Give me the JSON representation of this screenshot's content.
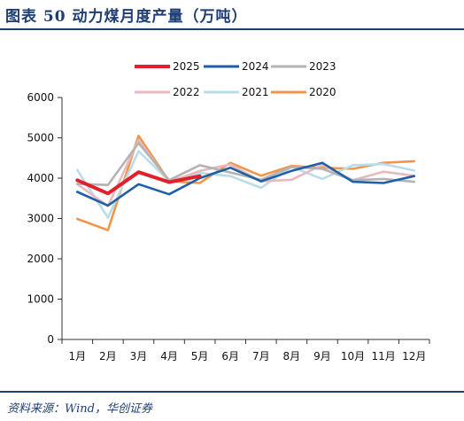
{
  "figure": {
    "title": "图表 50 动力煤月度产量（万吨）",
    "source": "资料来源：Wind，华创证券"
  },
  "chart_data": {
    "type": "line",
    "title": "",
    "xlabel": "",
    "ylabel": "",
    "categories": [
      "1月",
      "2月",
      "3月",
      "4月",
      "5月",
      "6月",
      "7月",
      "8月",
      "9月",
      "10月",
      "11月",
      "12月"
    ],
    "ylim": [
      0,
      6000
    ],
    "yticks": [
      0,
      1000,
      2000,
      3000,
      4000,
      5000,
      6000
    ],
    "grid": false,
    "legend_position": "top",
    "series": [
      {
        "name": "2025",
        "color": "#e0202a",
        "values": [
          3950,
          3620,
          4150,
          3900,
          4050,
          null,
          null,
          null,
          null,
          null,
          null,
          null
        ]
      },
      {
        "name": "2024",
        "color": "#1f5fa8",
        "values": [
          3660,
          3320,
          3850,
          3600,
          4000,
          4260,
          3920,
          4180,
          4380,
          3910,
          3880,
          4050
        ]
      },
      {
        "name": "2023",
        "color": "#b3b3b3",
        "values": [
          3860,
          3830,
          4870,
          3950,
          4320,
          4140,
          3960,
          4280,
          4230,
          3950,
          3980,
          3910
        ]
      },
      {
        "name": "2022",
        "color": "#e8b9bd",
        "values": [
          3850,
          3310,
          4950,
          3900,
          4180,
          4340,
          3920,
          3960,
          4330,
          3950,
          4160,
          4060
        ]
      },
      {
        "name": "2021",
        "color": "#b9dde8",
        "values": [
          4200,
          3020,
          4670,
          3930,
          4130,
          4050,
          3760,
          4280,
          3980,
          4320,
          4350,
          4190
        ]
      },
      {
        "name": "2020",
        "color": "#f0964c",
        "values": [
          2990,
          2710,
          5050,
          3920,
          3880,
          4380,
          4060,
          4300,
          4260,
          4230,
          4380,
          4420
        ]
      }
    ]
  }
}
